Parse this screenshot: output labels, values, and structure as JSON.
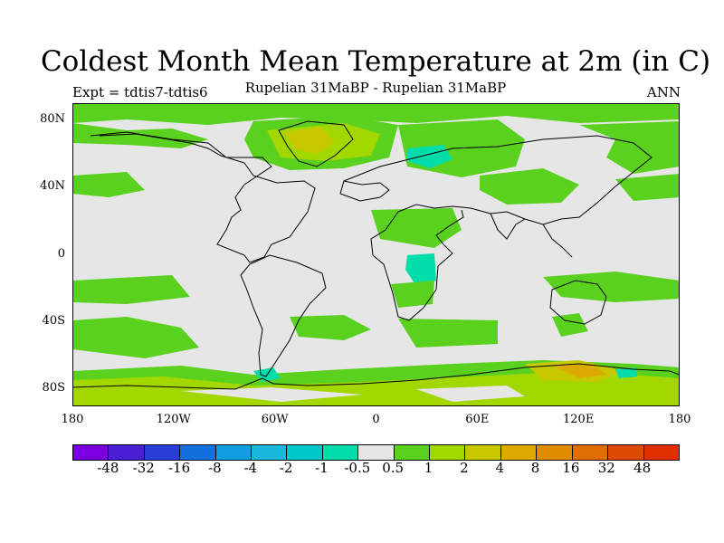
{
  "header": {
    "title": "Coldest Month Mean Temperature at 2m (in C)",
    "subtitle": "Rupelian  31MaBP - Rupelian  31MaBP",
    "left_label": "Expt = tdtis7-tdtis6",
    "right_label": "ANN"
  },
  "map": {
    "lat_ticks": [
      "80N",
      "40N",
      "0",
      "40S",
      "80S"
    ],
    "lat_tick_values": [
      80,
      40,
      0,
      -40,
      -80
    ],
    "lon_ticks": [
      "180",
      "120W",
      "60W",
      "0",
      "60E",
      "120E",
      "180"
    ],
    "lon_tick_values": [
      -180,
      -120,
      -60,
      0,
      60,
      120,
      180
    ],
    "lat_range": [
      -90,
      90
    ],
    "lon_range": [
      -180,
      180
    ],
    "background_color": "#e6e6e6",
    "coastline_color": "#000000"
  },
  "colorbar": {
    "colors": [
      "#7b00e0",
      "#4a1fd6",
      "#2a3fd8",
      "#1570df",
      "#0f9ee0",
      "#19b8dc",
      "#00c8c8",
      "#00dcaa",
      "#e6e6e6",
      "#5ad11e",
      "#a2d800",
      "#c8c800",
      "#dcaa00",
      "#e08c00",
      "#e06e00",
      "#e04a00",
      "#e03000"
    ],
    "labels": [
      "-48",
      "-32",
      "-16",
      "-8",
      "-4",
      "-2",
      "-1",
      "-0.5",
      "0.5",
      "1",
      "2",
      "4",
      "8",
      "16",
      "32",
      "48"
    ]
  }
}
